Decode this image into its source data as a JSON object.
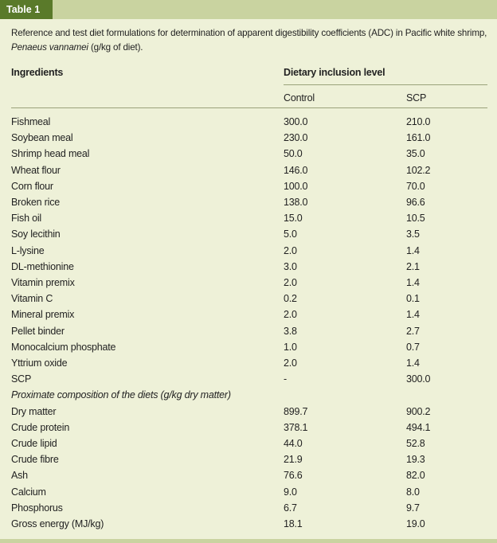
{
  "table_label": "Table 1",
  "caption": {
    "text": "Reference and test diet formulations for determination of apparent digestibility coefficients (ADC) in Pacific white shrimp,",
    "species": "Penaeus vannamei",
    "suffix": " (g/kg of diet)."
  },
  "headers": {
    "ingredients": "Ingredients",
    "inclusion": "Dietary inclusion level",
    "control": "Control",
    "scp": "SCP"
  },
  "rows": [
    {
      "name": "Fishmeal",
      "control": "300.0",
      "scp": "210.0"
    },
    {
      "name": "Soybean meal",
      "control": "230.0",
      "scp": "161.0"
    },
    {
      "name": "Shrimp head meal",
      "control": "50.0",
      "scp": "35.0"
    },
    {
      "name": "Wheat flour",
      "control": "146.0",
      "scp": "102.2"
    },
    {
      "name": "Corn flour",
      "control": "100.0",
      "scp": "70.0"
    },
    {
      "name": "Broken rice",
      "control": "138.0",
      "scp": "96.6"
    },
    {
      "name": "Fish oil",
      "control": "15.0",
      "scp": "10.5"
    },
    {
      "name": "Soy lecithin",
      "control": "5.0",
      "scp": "3.5"
    },
    {
      "name": "L-lysine",
      "control": "2.0",
      "scp": "1.4"
    },
    {
      "name": "DL-methionine",
      "control": "3.0",
      "scp": "2.1"
    },
    {
      "name": "Vitamin premix",
      "control": "2.0",
      "scp": "1.4"
    },
    {
      "name": "Vitamin C",
      "control": "0.2",
      "scp": "0.1"
    },
    {
      "name": "Mineral premix",
      "control": "2.0",
      "scp": "1.4"
    },
    {
      "name": "Pellet binder",
      "control": "3.8",
      "scp": "2.7"
    },
    {
      "name": "Monocalcium phosphate",
      "control": "1.0",
      "scp": "0.7"
    },
    {
      "name": "Yttrium oxide",
      "control": "2.0",
      "scp": "1.4"
    },
    {
      "name": "SCP",
      "control": "-",
      "scp": "300.0"
    }
  ],
  "proximate_label": "Proximate composition of the diets (g/kg dry matter)",
  "proximate_rows": [
    {
      "name": "Dry matter",
      "control": "899.7",
      "scp": "900.2"
    },
    {
      "name": "Crude protein",
      "control": "378.1",
      "scp": "494.1"
    },
    {
      "name": "Crude lipid",
      "control": "44.0",
      "scp": "52.8"
    },
    {
      "name": "Crude fibre",
      "control": "21.9",
      "scp": "19.3"
    },
    {
      "name": "Ash",
      "control": "76.6",
      "scp": "82.0"
    },
    {
      "name": "Calcium",
      "control": "9.0",
      "scp": "8.0"
    },
    {
      "name": "Phosphorus",
      "control": "6.7",
      "scp": "9.7"
    },
    {
      "name": "Gross energy (MJ/kg)",
      "control": "18.1",
      "scp": "19.0"
    }
  ],
  "colors": {
    "background": "#eef1d8",
    "band": "#c9d3a0",
    "tab": "#5a7a2a",
    "rule": "#9aa27a"
  }
}
